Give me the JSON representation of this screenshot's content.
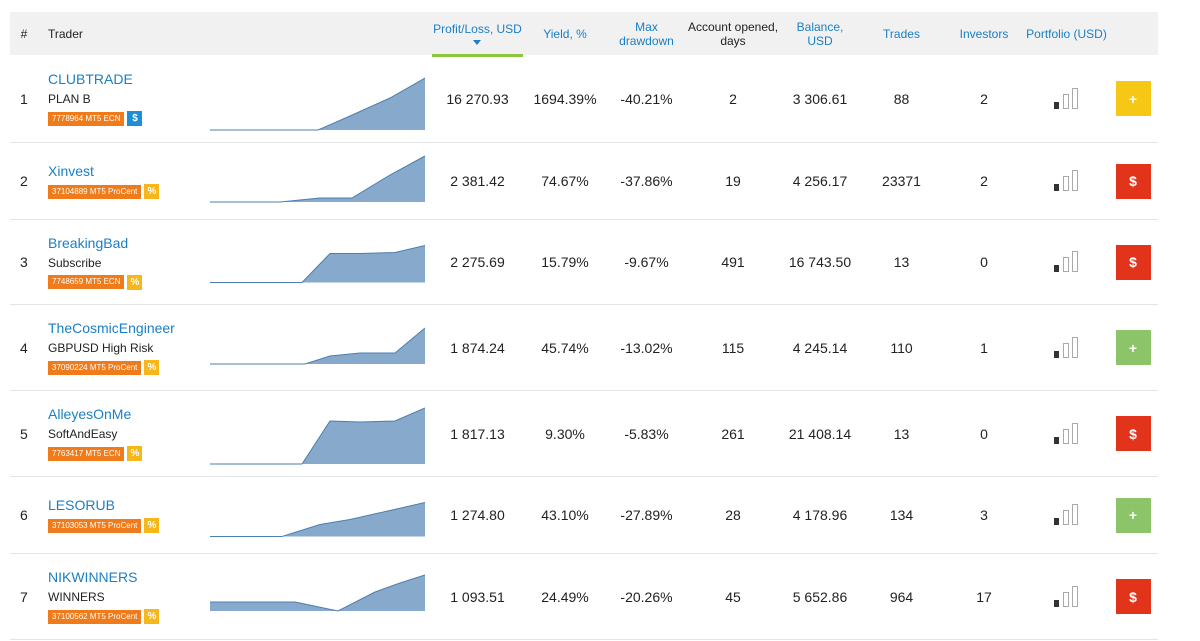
{
  "header": {
    "rank": "#",
    "trader": "Trader",
    "profit": "Profit/Loss, USD",
    "yield": "Yield, %",
    "drawdown": "Max drawdown",
    "opened": "Account opened, days",
    "balance": "Balance, USD",
    "trades": "Trades",
    "investors": "Investors",
    "portfolio": "Portfolio (USD)"
  },
  "rows": [
    {
      "rank": "1",
      "name": "CLUBTRADE",
      "plan": "PLAN B",
      "account": "7778964 MT5 ECN",
      "badge": "$",
      "badge_color": "#1e8fd5",
      "profit": "16 270.93",
      "yield": "1694.39%",
      "drawdown": "-40.21%",
      "opened": "2",
      "balance": "3 306.61",
      "trades": "88",
      "investors": "2",
      "button": "+",
      "button_color": "#f6c714"
    },
    {
      "rank": "2",
      "name": "Xinvest",
      "account": "37104889 MT5 ProCent",
      "badge": "%",
      "badge_color": "#f5b71c",
      "profit": "2 381.42",
      "yield": "74.67%",
      "drawdown": "-37.86%",
      "opened": "19",
      "balance": "4 256.17",
      "trades": "23371",
      "investors": "2",
      "button": "$",
      "button_color": "#e2331b"
    },
    {
      "rank": "3",
      "name": "BreakingBad",
      "plan": "Subscribe",
      "account": "7748659 MT5 ECN",
      "badge": "%",
      "badge_color": "#f5b71c",
      "profit": "2 275.69",
      "yield": "15.79%",
      "drawdown": "-9.67%",
      "opened": "491",
      "balance": "16 743.50",
      "trades": "13",
      "investors": "0",
      "button": "$",
      "button_color": "#e2331b"
    },
    {
      "rank": "4",
      "name": "TheCosmicEngineer",
      "plan": "GBPUSD High Risk",
      "account": "37090224 MT5 ProCent",
      "badge": "%",
      "badge_color": "#f5b71c",
      "profit": "1 874.24",
      "yield": "45.74%",
      "drawdown": "-13.02%",
      "opened": "115",
      "balance": "4 245.14",
      "trades": "110",
      "investors": "1",
      "button": "+",
      "button_color": "#8cc46a"
    },
    {
      "rank": "5",
      "name": "AlleyesOnMe",
      "plan": "SoftAndEasy",
      "account": "7763417 MT5 ECN",
      "badge": "%",
      "badge_color": "#f5b71c",
      "profit": "1 817.13",
      "yield": "9.30%",
      "drawdown": "-5.83%",
      "opened": "261",
      "balance": "21 408.14",
      "trades": "13",
      "investors": "0",
      "button": "$",
      "button_color": "#e2331b"
    },
    {
      "rank": "6",
      "name": "LESORUB",
      "account": "37103053 MT5 ProCent",
      "badge": "%",
      "badge_color": "#f5b71c",
      "profit": "1 274.80",
      "yield": "43.10%",
      "drawdown": "-27.89%",
      "opened": "28",
      "balance": "4 178.96",
      "trades": "134",
      "investors": "3",
      "button": "+",
      "button_color": "#8cc46a"
    },
    {
      "rank": "7",
      "name": "NIKWINNERS",
      "plan": "WINNERS",
      "account": "37100562 MT5 ProCent",
      "badge": "%",
      "badge_color": "#f5b71c",
      "profit": "1 093.51",
      "yield": "24.49%",
      "drawdown": "-20.26%",
      "opened": "45",
      "balance": "5 652.86",
      "trades": "964",
      "investors": "17",
      "button": "$",
      "button_color": "#e2331b"
    }
  ]
}
